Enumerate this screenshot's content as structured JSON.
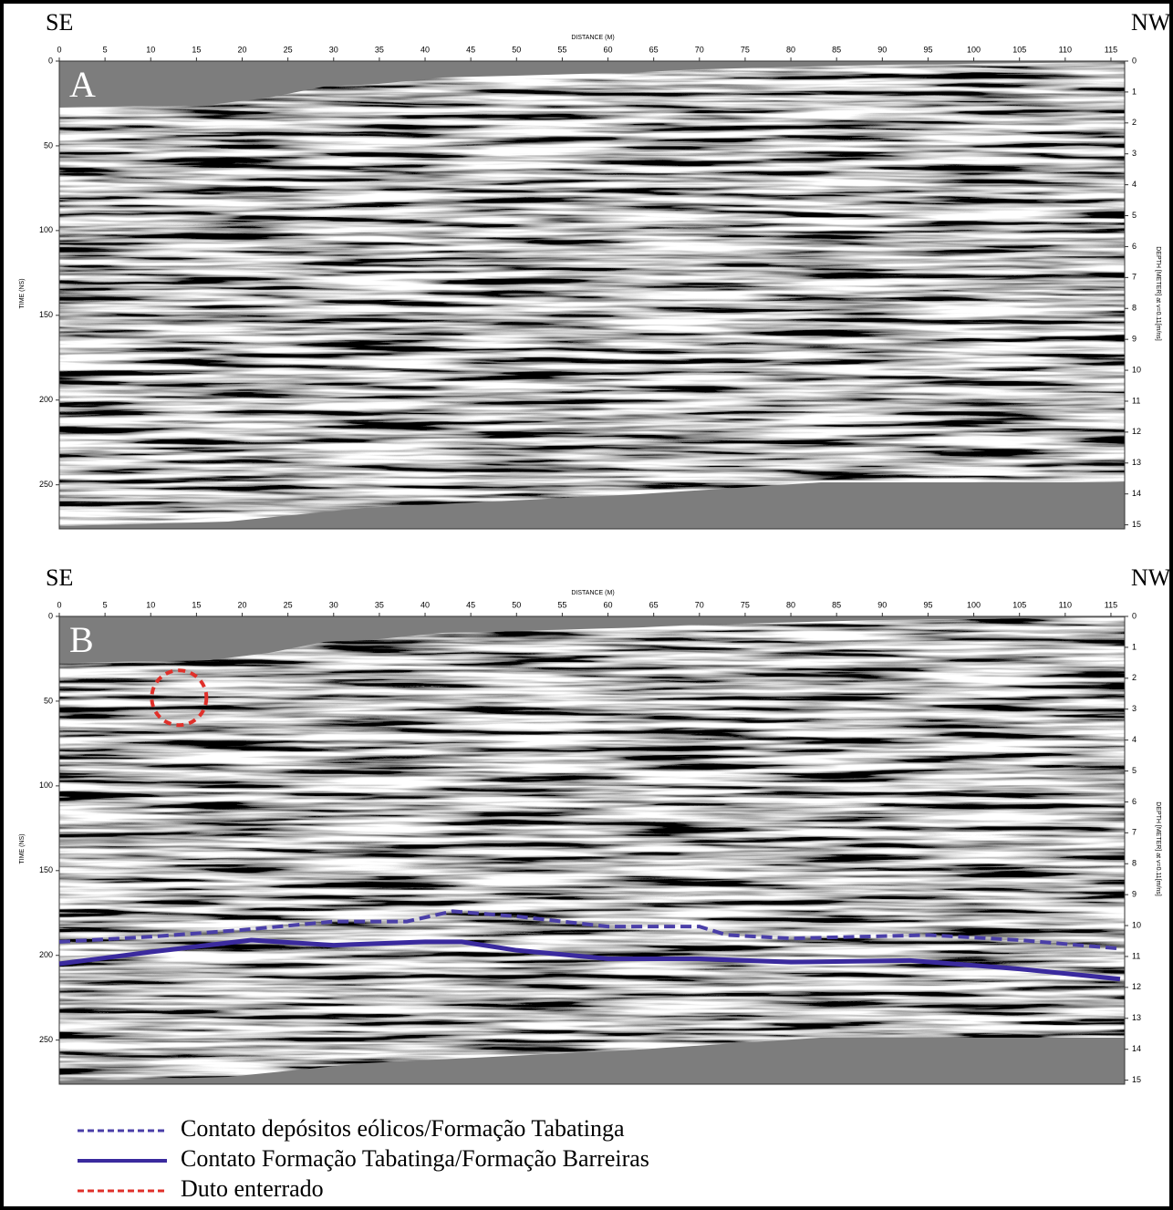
{
  "chart_data": [
    {
      "type": "radargram",
      "panel_label": "A",
      "left_label": "SE",
      "right_label": "NW",
      "xlabel": "DISTANCE (M)",
      "ylabel": "TIME (NS)",
      "y2label": "DEPTH [METER] at v=0.11[m/ns]",
      "xlim": [
        0,
        116.5
      ],
      "xticks": [
        0,
        5,
        10,
        15,
        20,
        25,
        30,
        35,
        40,
        45,
        50,
        55,
        60,
        65,
        70,
        75,
        80,
        85,
        90,
        95,
        100,
        105,
        110,
        115
      ],
      "ylim": [
        0,
        276
      ],
      "yticks": [
        0,
        50,
        100,
        150,
        200,
        250
      ],
      "y2lim": [
        0,
        15.13
      ],
      "y2ticks": [
        0,
        1,
        2,
        3,
        4,
        5,
        6,
        7,
        8,
        9,
        10,
        11,
        12,
        13,
        14,
        15
      ]
    },
    {
      "type": "radargram",
      "panel_label": "B",
      "left_label": "SE",
      "right_label": "NW",
      "xlabel": "DISTANCE (M)",
      "ylabel": "TIME (NS)",
      "y2label": "DEPTH [METER] at v=0.11[m/ns]",
      "xlim": [
        0,
        116.5
      ],
      "xticks": [
        0,
        5,
        10,
        15,
        20,
        25,
        30,
        35,
        40,
        45,
        50,
        55,
        60,
        65,
        70,
        75,
        80,
        85,
        90,
        95,
        100,
        105,
        110,
        115
      ],
      "ylim": [
        0,
        276
      ],
      "yticks": [
        0,
        50,
        100,
        150,
        200,
        250
      ],
      "y2lim": [
        0,
        15.13
      ],
      "y2ticks": [
        0,
        1,
        2,
        3,
        4,
        5,
        6,
        7,
        8,
        9,
        10,
        11,
        12,
        13,
        14,
        15
      ],
      "series": [
        {
          "name": "Contato depósitos eólicos/Formação Tabatinga",
          "color": "#4a3fa8",
          "style": "dashed",
          "x": [
            0,
            10,
            20,
            30,
            38,
            43,
            50,
            60,
            70,
            73,
            80,
            95,
            105,
            116
          ],
          "values": [
            192,
            189,
            185,
            180,
            180,
            174,
            177,
            183,
            183,
            188,
            190,
            188,
            191,
            196
          ]
        },
        {
          "name": "Contato Formação Tabatinga/Formação Barreiras",
          "color": "#3a2a9e",
          "style": "solid",
          "x": [
            0,
            10,
            21,
            30,
            40,
            44,
            50,
            60,
            70,
            80,
            93,
            105,
            116
          ],
          "values": [
            205,
            198,
            191,
            194,
            192,
            192,
            197,
            202,
            202,
            204,
            203,
            208,
            214
          ]
        },
        {
          "name": "Duto enterrado",
          "color": "#e0302a",
          "style": "circle",
          "x": [
            13.1
          ],
          "values": [
            48
          ]
        }
      ]
    }
  ]
}
